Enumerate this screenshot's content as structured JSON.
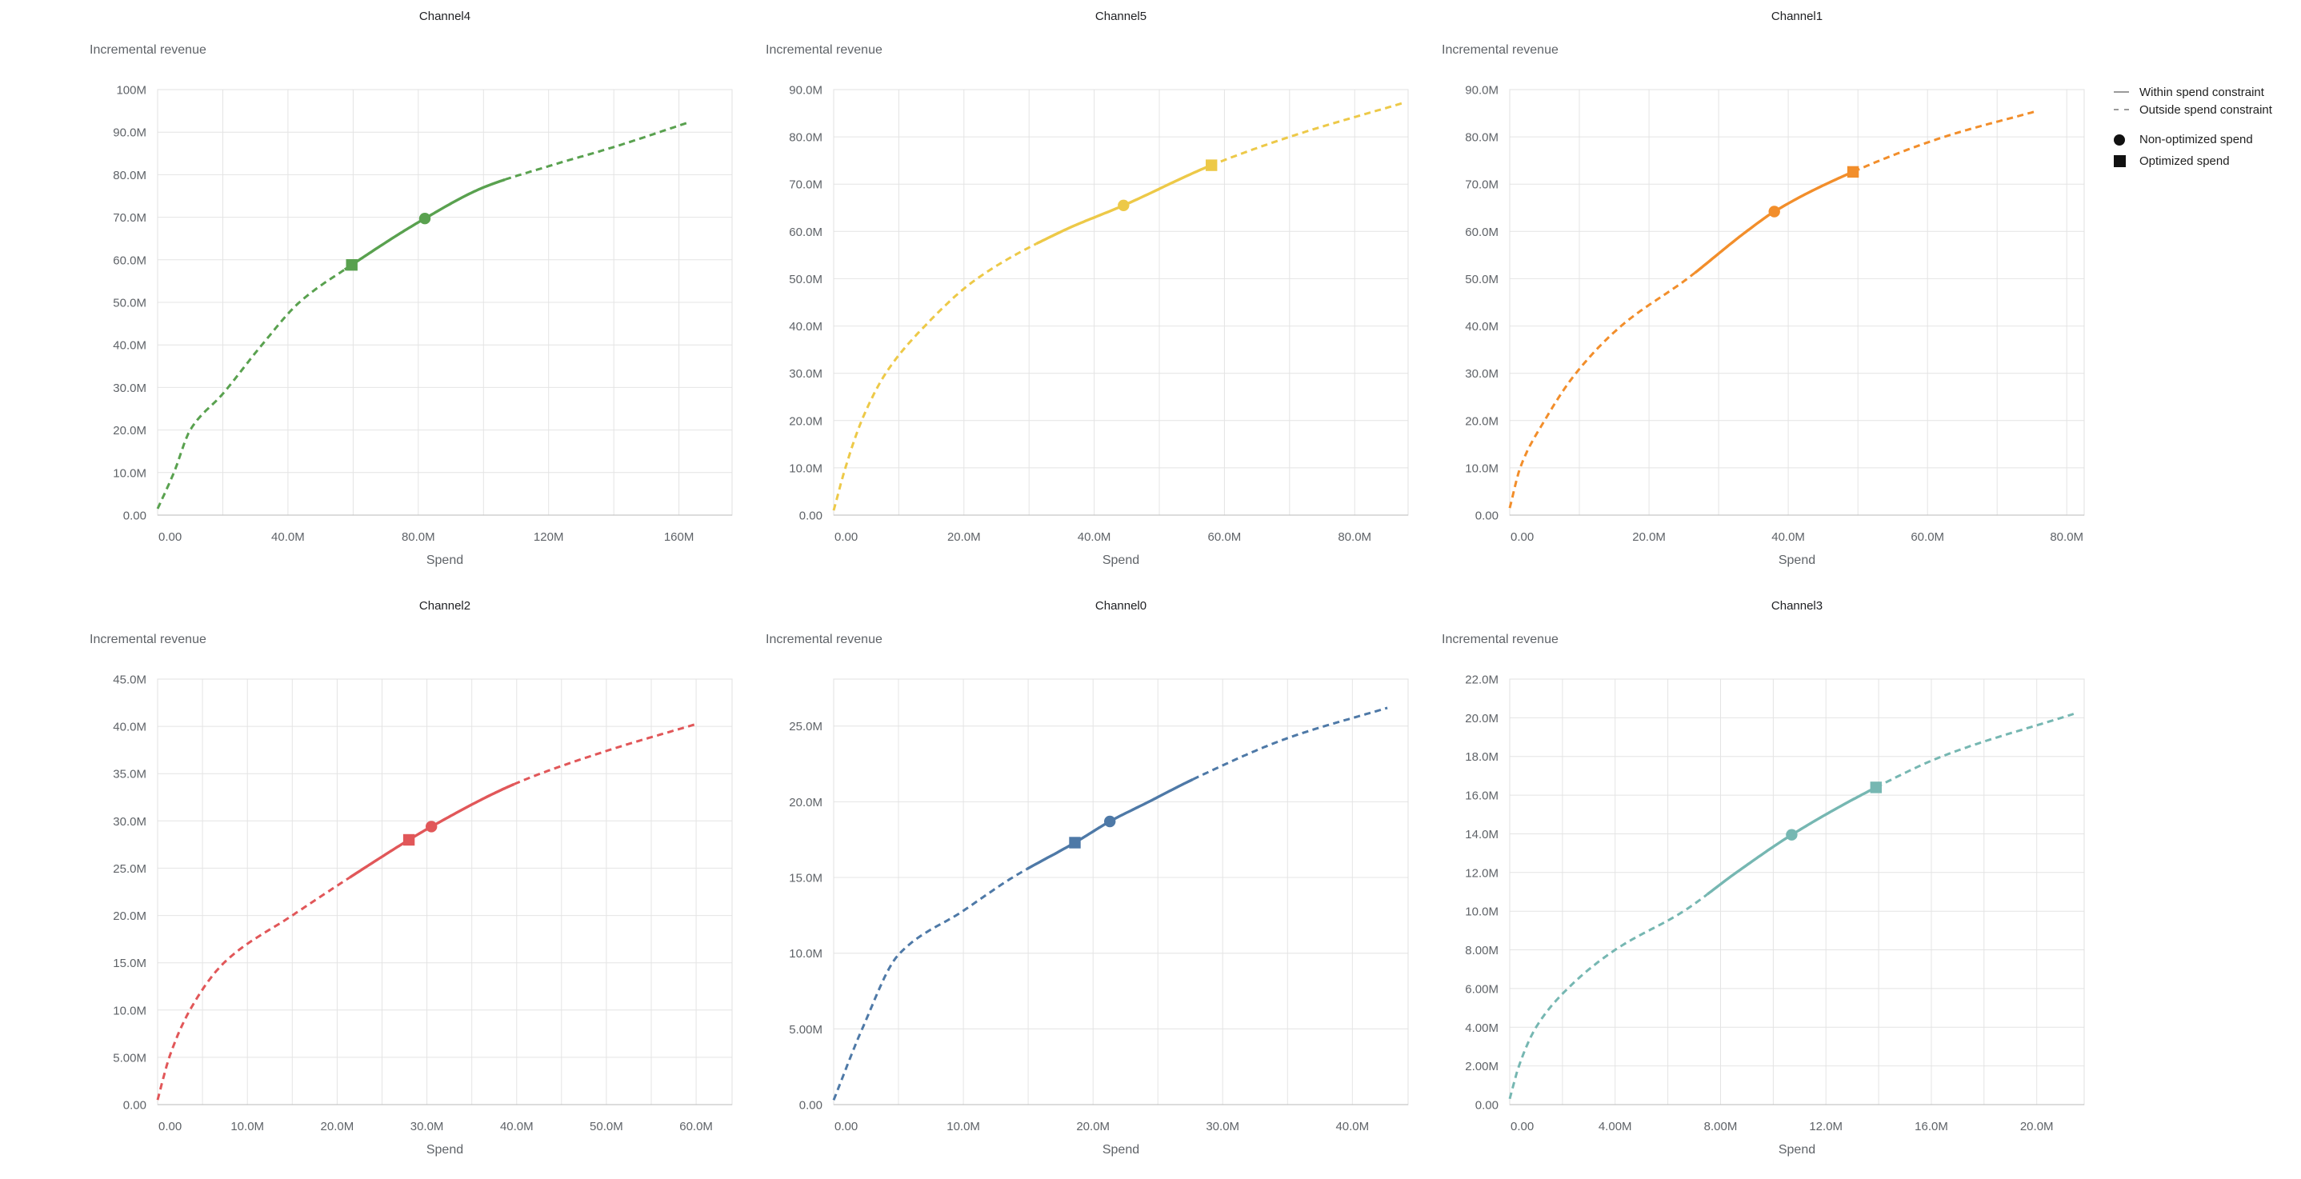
{
  "page_background": "#ffffff",
  "legend": {
    "line_swatch_color": "#9a9a9a",
    "marker_swatch_color": "#111111",
    "items": [
      {
        "label": "Within spend constraint",
        "swatch": "solid-line"
      },
      {
        "label": "Outside spend constraint",
        "swatch": "dashed-line"
      },
      {
        "label": "Non-optimized spend",
        "swatch": "circle"
      },
      {
        "label": "Optimized spend",
        "swatch": "square"
      }
    ]
  },
  "chart_data": [
    {
      "type": "line",
      "title": "Channel4",
      "xlabel": "Spend",
      "ylabel": "Incremental revenue",
      "color": "#59A14F",
      "units": "millions",
      "xlim": [
        0,
        176.3
      ],
      "ylim": [
        0,
        100
      ],
      "xgrid": [
        0,
        20,
        40,
        60,
        80,
        100,
        120,
        140,
        160
      ],
      "xticks": [
        {
          "v": 0,
          "label": "0.00"
        },
        {
          "v": 40,
          "label": "40.0M"
        },
        {
          "v": 80,
          "label": "80.0M"
        },
        {
          "v": 120,
          "label": "120M"
        },
        {
          "v": 160,
          "label": "160M"
        }
      ],
      "yticks": [
        {
          "v": 0,
          "label": "0.00"
        },
        {
          "v": 10,
          "label": "10.0M"
        },
        {
          "v": 20,
          "label": "20.0M"
        },
        {
          "v": 30,
          "label": "30.0M"
        },
        {
          "v": 40,
          "label": "40.0M"
        },
        {
          "v": 50,
          "label": "50.0M"
        },
        {
          "v": 60,
          "label": "60.0M"
        },
        {
          "v": 70,
          "label": "70.0M"
        },
        {
          "v": 80,
          "label": "80.0M"
        },
        {
          "v": 90,
          "label": "90.0M"
        },
        {
          "v": 100,
          "label": "100M"
        }
      ],
      "curve": [
        [
          0,
          1.5
        ],
        [
          5,
          10
        ],
        [
          10,
          20
        ],
        [
          20,
          28.5
        ],
        [
          32,
          40
        ],
        [
          43.5,
          50
        ],
        [
          60,
          59
        ],
        [
          82,
          69.7
        ],
        [
          100,
          77
        ],
        [
          120,
          82
        ],
        [
          140,
          86.5
        ],
        [
          163,
          92.3
        ]
      ],
      "solid_range": [
        57.4,
        106.6
      ],
      "non_optimized_spend": [
        82,
        69.7
      ],
      "optimized_spend": [
        59.6,
        58.8
      ]
    },
    {
      "type": "line",
      "title": "Channel5",
      "xlabel": "Spend",
      "ylabel": "Incremental revenue",
      "color": "#EDC948",
      "units": "millions",
      "xlim": [
        0,
        88.2
      ],
      "ylim": [
        0,
        90
      ],
      "xgrid": [
        0,
        10,
        20,
        30,
        40,
        50,
        60,
        70,
        80
      ],
      "xticks": [
        {
          "v": 0,
          "label": "0.00"
        },
        {
          "v": 20,
          "label": "20.0M"
        },
        {
          "v": 40,
          "label": "40.0M"
        },
        {
          "v": 60,
          "label": "60.0M"
        },
        {
          "v": 80,
          "label": "80.0M"
        }
      ],
      "yticks": [
        {
          "v": 0,
          "label": "0.00"
        },
        {
          "v": 10,
          "label": "10.0M"
        },
        {
          "v": 20,
          "label": "20.0M"
        },
        {
          "v": 30,
          "label": "30.0M"
        },
        {
          "v": 40,
          "label": "40.0M"
        },
        {
          "v": 50,
          "label": "50.0M"
        },
        {
          "v": 60,
          "label": "60.0M"
        },
        {
          "v": 70,
          "label": "70.0M"
        },
        {
          "v": 80,
          "label": "80.0M"
        },
        {
          "v": 90,
          "label": "90.0M"
        }
      ],
      "curve": [
        [
          0,
          1
        ],
        [
          1.8,
          10
        ],
        [
          4.3,
          20
        ],
        [
          8,
          30
        ],
        [
          14,
          40
        ],
        [
          22,
          50
        ],
        [
          35,
          60
        ],
        [
          44.5,
          65.5
        ],
        [
          58,
          74
        ],
        [
          70,
          80
        ],
        [
          87.5,
          87.2
        ]
      ],
      "solid_range": [
        31.1,
        57.9
      ],
      "non_optimized_spend": [
        44.5,
        65.5
      ],
      "optimized_spend": [
        58,
        74
      ]
    },
    {
      "type": "line",
      "title": "Channel1",
      "xlabel": "Spend",
      "ylabel": "Incremental revenue",
      "color": "#F28E2B",
      "units": "millions",
      "xlim": [
        0,
        82.5
      ],
      "ylim": [
        0,
        90
      ],
      "xgrid": [
        0,
        10,
        20,
        30,
        40,
        50,
        60,
        70,
        80
      ],
      "xticks": [
        {
          "v": 0,
          "label": "0.00"
        },
        {
          "v": 20,
          "label": "20.0M"
        },
        {
          "v": 40,
          "label": "40.0M"
        },
        {
          "v": 60,
          "label": "60.0M"
        },
        {
          "v": 80,
          "label": "80.0M"
        }
      ],
      "yticks": [
        {
          "v": 0,
          "label": "0.00"
        },
        {
          "v": 10,
          "label": "10.0M"
        },
        {
          "v": 20,
          "label": "20.0M"
        },
        {
          "v": 30,
          "label": "30.0M"
        },
        {
          "v": 40,
          "label": "40.0M"
        },
        {
          "v": 50,
          "label": "50.0M"
        },
        {
          "v": 60,
          "label": "60.0M"
        },
        {
          "v": 70,
          "label": "70.0M"
        },
        {
          "v": 80,
          "label": "80.0M"
        },
        {
          "v": 90,
          "label": "90.0M"
        }
      ],
      "curve": [
        [
          0,
          1.5
        ],
        [
          1.5,
          10
        ],
        [
          5,
          20
        ],
        [
          9.5,
          30
        ],
        [
          16,
          40
        ],
        [
          25.5,
          50
        ],
        [
          34,
          60
        ],
        [
          38,
          64.2
        ],
        [
          49.3,
          72.6
        ],
        [
          62.4,
          80
        ],
        [
          75.8,
          85.5
        ]
      ],
      "solid_range": [
        26.6,
        49.4
      ],
      "non_optimized_spend": [
        38,
        64.2
      ],
      "optimized_spend": [
        49.3,
        72.6
      ]
    },
    {
      "type": "line",
      "title": "Channel2",
      "xlabel": "Spend",
      "ylabel": "Incremental revenue",
      "color": "#E15759",
      "units": "millions",
      "xlim": [
        0,
        64
      ],
      "ylim": [
        0,
        45
      ],
      "xgrid": [
        0,
        5,
        10,
        15,
        20,
        25,
        30,
        35,
        40,
        45,
        50,
        55,
        60
      ],
      "xticks": [
        {
          "v": 0,
          "label": "0.00"
        },
        {
          "v": 10,
          "label": "10.0M"
        },
        {
          "v": 20,
          "label": "20.0M"
        },
        {
          "v": 30,
          "label": "30.0M"
        },
        {
          "v": 40,
          "label": "40.0M"
        },
        {
          "v": 50,
          "label": "50.0M"
        },
        {
          "v": 60,
          "label": "60.0M"
        }
      ],
      "yticks": [
        {
          "v": 0,
          "label": "0.00"
        },
        {
          "v": 5,
          "label": "5.00M"
        },
        {
          "v": 10,
          "label": "10.0M"
        },
        {
          "v": 15,
          "label": "15.0M"
        },
        {
          "v": 20,
          "label": "20.0M"
        },
        {
          "v": 25,
          "label": "25.0M"
        },
        {
          "v": 30,
          "label": "30.0M"
        },
        {
          "v": 35,
          "label": "35.0M"
        },
        {
          "v": 40,
          "label": "40.0M"
        },
        {
          "v": 45,
          "label": "45.0M"
        }
      ],
      "curve": [
        [
          0,
          0.5
        ],
        [
          1.3,
          5
        ],
        [
          3.6,
          10
        ],
        [
          7.4,
          15
        ],
        [
          15,
          20
        ],
        [
          23,
          25
        ],
        [
          28,
          28
        ],
        [
          30.5,
          29.4
        ],
        [
          40,
          34
        ],
        [
          50,
          37.4
        ],
        [
          60.2,
          40.3
        ]
      ],
      "solid_range": [
        21.4,
        39.7
      ],
      "non_optimized_spend": [
        30.5,
        29.4
      ],
      "optimized_spend": [
        28,
        28
      ]
    },
    {
      "type": "line",
      "title": "Channel0",
      "xlabel": "Spend",
      "ylabel": "Incremental revenue",
      "color": "#4E79A7",
      "units": "millions",
      "xlim": [
        0,
        44.3
      ],
      "ylim": [
        0,
        28.1
      ],
      "xgrid": [
        0,
        5,
        10,
        15,
        20,
        25,
        30,
        35,
        40
      ],
      "xticks": [
        {
          "v": 0,
          "label": "0.00"
        },
        {
          "v": 10,
          "label": "10.0M"
        },
        {
          "v": 20,
          "label": "20.0M"
        },
        {
          "v": 30,
          "label": "30.0M"
        },
        {
          "v": 40,
          "label": "40.0M"
        }
      ],
      "yticks": [
        {
          "v": 0,
          "label": "0.00"
        },
        {
          "v": 5,
          "label": "5.00M"
        },
        {
          "v": 10,
          "label": "10.0M"
        },
        {
          "v": 15,
          "label": "15.0M"
        },
        {
          "v": 20,
          "label": "20.0M"
        },
        {
          "v": 25,
          "label": "25.0M"
        }
      ],
      "curve": [
        [
          0,
          0.3
        ],
        [
          2.2,
          5
        ],
        [
          5,
          9.9
        ],
        [
          10,
          12.8
        ],
        [
          13.8,
          15
        ],
        [
          18.6,
          17.3
        ],
        [
          21.3,
          18.7
        ],
        [
          24.3,
          20
        ],
        [
          28,
          21.6
        ],
        [
          35,
          24.2
        ],
        [
          42.7,
          26.2
        ]
      ],
      "solid_range": [
        14.9,
        27.7
      ],
      "non_optimized_spend": [
        21.3,
        18.7
      ],
      "optimized_spend": [
        18.6,
        17.3
      ]
    },
    {
      "type": "line",
      "title": "Channel3",
      "xlabel": "Spend",
      "ylabel": "Incremental revenue",
      "color": "#76B7B2",
      "units": "millions",
      "xlim": [
        0,
        21.8
      ],
      "ylim": [
        0,
        22
      ],
      "xgrid": [
        0,
        2,
        4,
        6,
        8,
        10,
        12,
        14,
        16,
        18,
        20
      ],
      "xticks": [
        {
          "v": 0,
          "label": "0.00"
        },
        {
          "v": 4,
          "label": "4.00M"
        },
        {
          "v": 8,
          "label": "8.00M"
        },
        {
          "v": 12,
          "label": "12.0M"
        },
        {
          "v": 16,
          "label": "16.0M"
        },
        {
          "v": 20,
          "label": "20.0M"
        }
      ],
      "yticks": [
        {
          "v": 0,
          "label": "0.00"
        },
        {
          "v": 2,
          "label": "2.00M"
        },
        {
          "v": 4,
          "label": "4.00M"
        },
        {
          "v": 6,
          "label": "6.00M"
        },
        {
          "v": 8,
          "label": "8.00M"
        },
        {
          "v": 10,
          "label": "10.0M"
        },
        {
          "v": 12,
          "label": "12.0M"
        },
        {
          "v": 14,
          "label": "14.0M"
        },
        {
          "v": 16,
          "label": "16.0M"
        },
        {
          "v": 18,
          "label": "18.0M"
        },
        {
          "v": 20,
          "label": "20.0M"
        },
        {
          "v": 22,
          "label": "22.0M"
        }
      ],
      "curve": [
        [
          0,
          0.3
        ],
        [
          0.35,
          2
        ],
        [
          1,
          4
        ],
        [
          2.2,
          6
        ],
        [
          4,
          8
        ],
        [
          6.6,
          10
        ],
        [
          8.6,
          12
        ],
        [
          10.7,
          13.95
        ],
        [
          13.9,
          16.4
        ],
        [
          16.4,
          18
        ],
        [
          21.4,
          20.2
        ]
      ],
      "solid_range": [
        7.5,
        13.9
      ],
      "non_optimized_spend": [
        10.7,
        13.95
      ],
      "optimized_spend": [
        13.9,
        16.4
      ]
    }
  ]
}
